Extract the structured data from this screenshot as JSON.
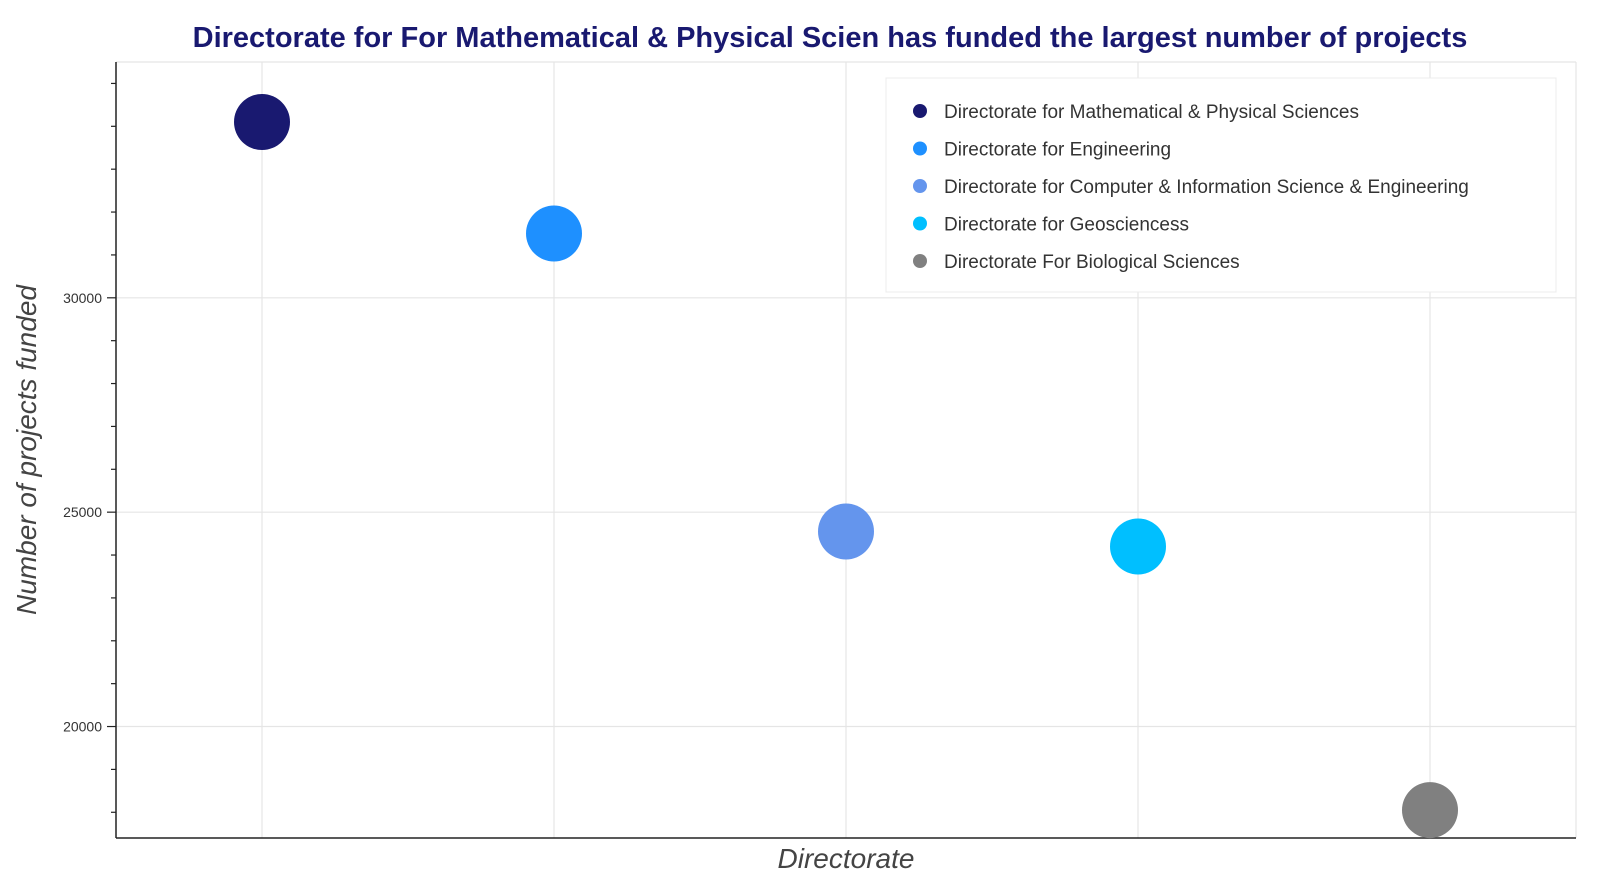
{
  "chart_data": {
    "type": "scatter",
    "title": "Directorate for For Mathematical & Physical Scien has funded the largest number of projects",
    "xlabel": "Directorate",
    "ylabel": "Number of projects funded",
    "ylim": [
      17400,
      35500
    ],
    "yticks": [
      20000,
      25000,
      30000
    ],
    "grid": true,
    "legend_position": "top-right",
    "series": [
      {
        "name": "Directorate for Mathematical & Physical Sciences",
        "x": 0,
        "y": 34100,
        "color": "#191970"
      },
      {
        "name": "Directorate for Engineering",
        "x": 1,
        "y": 31500,
        "color": "#1E90FF"
      },
      {
        "name": "Directorate for Computer & Information Science & Engineering",
        "x": 2,
        "y": 24550,
        "color": "#6495ED"
      },
      {
        "name": "Directorate for Geosciencess",
        "x": 3,
        "y": 24200,
        "color": "#00BFFF"
      },
      {
        "name": "Directorate For Biological Sciences",
        "x": 4,
        "y": 18050,
        "color": "#808080"
      }
    ]
  }
}
